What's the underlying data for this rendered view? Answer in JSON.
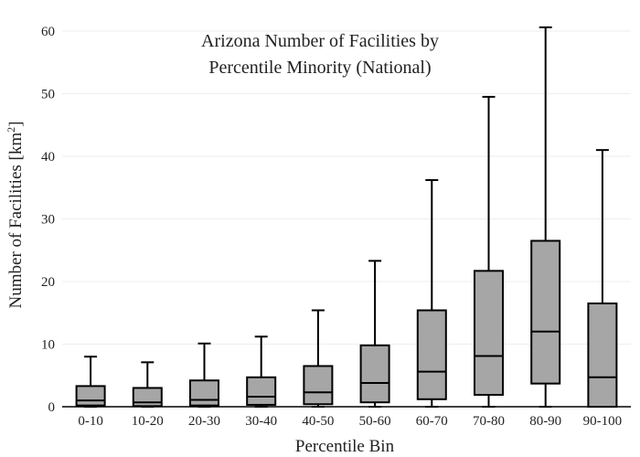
{
  "chart_data": {
    "type": "box",
    "title_lines": [
      "Arizona Number of Facilities by",
      "Percentile Minority (National)"
    ],
    "xlabel": "Percentile Bin",
    "ylabel": "Number of Facilities  [km",
    "ylabel_sup": "2",
    "ylabel_close": "]",
    "ylim": [
      0,
      60
    ],
    "yticks": [
      0,
      10,
      20,
      30,
      40,
      50,
      60
    ],
    "grid": true,
    "categories": [
      "0-10",
      "10-20",
      "20-30",
      "30-40",
      "40-50",
      "50-60",
      "60-70",
      "70-80",
      "80-90",
      "90-100"
    ],
    "boxes": [
      {
        "min": 0,
        "q1": 0.2,
        "median": 1.0,
        "q3": 3.3,
        "max": 8.0
      },
      {
        "min": 0,
        "q1": 0.1,
        "median": 0.7,
        "q3": 3.0,
        "max": 7.1
      },
      {
        "min": 0,
        "q1": 0.2,
        "median": 1.1,
        "q3": 4.2,
        "max": 10.1
      },
      {
        "min": 0,
        "q1": 0.3,
        "median": 1.6,
        "q3": 4.7,
        "max": 11.2
      },
      {
        "min": 0,
        "q1": 0.4,
        "median": 2.3,
        "q3": 6.5,
        "max": 15.4
      },
      {
        "min": 0,
        "q1": 0.7,
        "median": 3.8,
        "q3": 9.8,
        "max": 23.3
      },
      {
        "min": 0,
        "q1": 1.2,
        "median": 5.6,
        "q3": 15.4,
        "max": 36.2
      },
      {
        "min": 0,
        "q1": 1.9,
        "median": 8.1,
        "q3": 21.7,
        "max": 49.5
      },
      {
        "min": 0,
        "q1": 3.7,
        "median": 12.0,
        "q3": 26.5,
        "max": 60.6
      },
      {
        "min": 0,
        "q1": 0,
        "median": 4.7,
        "q3": 16.5,
        "max": 41.0
      }
    ]
  }
}
